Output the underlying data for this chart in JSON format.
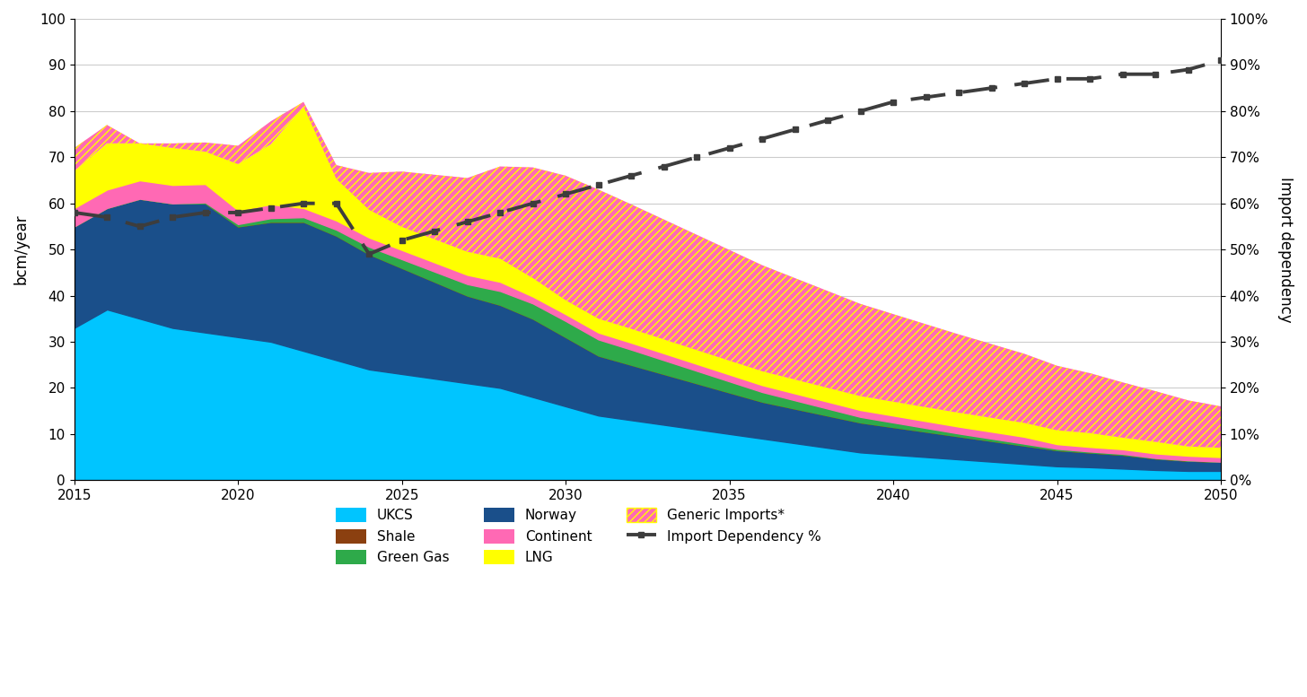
{
  "years": [
    2015,
    2016,
    2017,
    2018,
    2019,
    2020,
    2021,
    2022,
    2023,
    2024,
    2025,
    2026,
    2027,
    2028,
    2029,
    2030,
    2031,
    2032,
    2033,
    2034,
    2035,
    2036,
    2037,
    2038,
    2039,
    2040,
    2041,
    2042,
    2043,
    2044,
    2045,
    2046,
    2047,
    2048,
    2049,
    2050
  ],
  "UKCS": [
    33,
    37,
    35,
    33,
    32,
    31,
    30,
    28,
    26,
    24,
    23,
    22,
    21,
    20,
    18,
    16,
    14,
    13,
    12,
    11,
    10,
    9,
    8,
    7,
    6,
    5.5,
    5,
    4.5,
    4,
    3.5,
    3,
    2.8,
    2.5,
    2.2,
    2.0,
    2.0
  ],
  "Norway": [
    22,
    22,
    26,
    27,
    28,
    24,
    26,
    28,
    27,
    25,
    23,
    21,
    19,
    18,
    17,
    15,
    13,
    12,
    11,
    10,
    9,
    8,
    7.5,
    7,
    6.5,
    6,
    5.5,
    5,
    4.5,
    4,
    3.5,
    3.2,
    3,
    2.5,
    2.2,
    2.0
  ],
  "Shale": [
    0,
    0,
    0,
    0,
    0,
    0,
    0,
    0,
    0,
    0,
    0,
    0,
    0,
    0,
    0,
    0,
    0,
    0,
    0,
    0,
    0,
    0,
    0,
    0,
    0,
    0,
    0,
    0,
    0,
    0,
    0,
    0,
    0,
    0,
    0,
    0
  ],
  "GreenGas": [
    0,
    0,
    0,
    0,
    0.2,
    0.5,
    0.8,
    1.0,
    1.3,
    1.6,
    1.9,
    2.2,
    2.5,
    3.0,
    3.3,
    3.5,
    3.5,
    3.3,
    3.0,
    2.7,
    2.4,
    2.1,
    1.8,
    1.5,
    1.2,
    1.0,
    0.8,
    0.6,
    0.5,
    0.4,
    0.3,
    0.2,
    0.2,
    0.1,
    0.1,
    0
  ],
  "Continent": [
    4,
    4,
    4,
    4,
    4,
    3,
    3,
    2,
    2,
    2,
    2,
    2,
    2,
    2,
    1.5,
    1.5,
    1.5,
    1.5,
    1.5,
    1.5,
    1.5,
    1.5,
    1.5,
    1.5,
    1.5,
    1.5,
    1.5,
    1.5,
    1.5,
    1.5,
    1,
    1,
    1,
    1,
    1,
    1
  ],
  "LNG": [
    8,
    10,
    8,
    8,
    7,
    10,
    13,
    22,
    9,
    6,
    5,
    5,
    5,
    5,
    4,
    3,
    3,
    3,
    3,
    3,
    3,
    3,
    3,
    3,
    3,
    3,
    3,
    3,
    3,
    3,
    3,
    3,
    2.5,
    2.5,
    2,
    2
  ],
  "GenericImports": [
    5,
    4,
    0,
    1,
    2,
    4,
    5,
    1,
    3,
    8,
    12,
    14,
    16,
    20,
    24,
    27,
    28,
    27,
    26,
    25,
    24,
    23,
    22,
    21,
    20,
    19,
    18,
    17,
    16,
    15,
    14,
    13,
    12,
    11,
    10,
    9
  ],
  "ImportDependency": [
    58,
    57,
    55,
    57,
    58,
    58,
    59,
    60,
    60,
    49,
    52,
    54,
    56,
    58,
    60,
    62,
    64,
    66,
    68,
    70,
    72,
    74,
    76,
    78,
    80,
    82,
    83,
    84,
    85,
    86,
    87,
    87,
    88,
    88,
    89,
    91
  ],
  "color_UKCS": "#00C5FF",
  "color_Norway": "#1A4F8A",
  "color_Shale": "#8B4010",
  "color_GreenGas": "#2EAA4A",
  "color_Continent": "#FF69B4",
  "color_LNG": "#FFFF00",
  "color_ImportDep": "#3D3D3D",
  "ylabel_left": "bcm/year",
  "ylabel_right": "Import dependency",
  "ylim": [
    0,
    100
  ],
  "xlim": [
    2015,
    2050
  ]
}
